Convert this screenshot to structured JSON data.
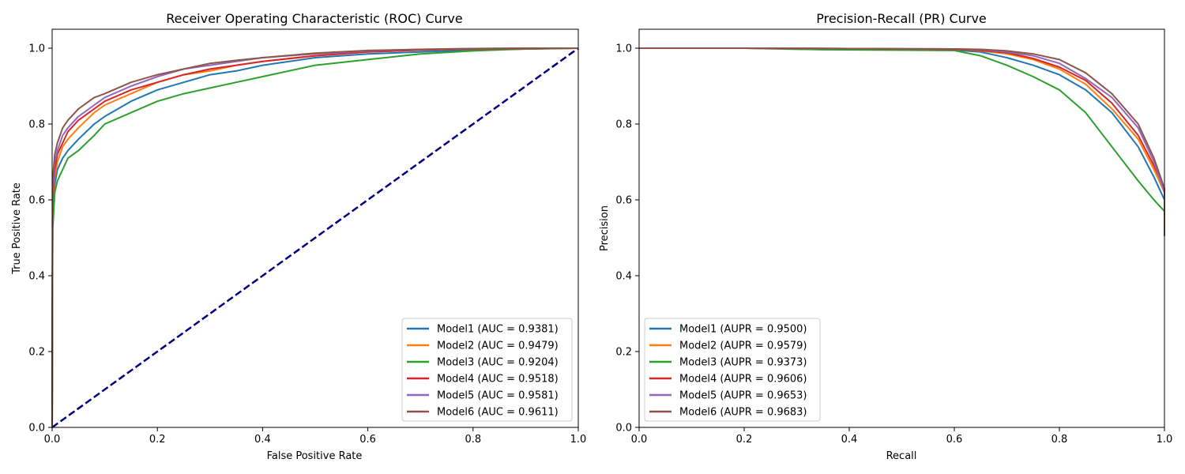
{
  "colors": {
    "Model1": "#1f77b4",
    "Model2": "#ff7f0e",
    "Model3": "#2ca02c",
    "Model4": "#d62728",
    "Model5": "#9467bd",
    "Model6": "#8c564b",
    "diagonal": "#000080"
  },
  "chart_data": [
    {
      "type": "line",
      "title": "Receiver Operating Characteristic (ROC) Curve",
      "xlabel": "False Positive Rate",
      "ylabel": "True Positive Rate",
      "xlim": [
        0,
        1
      ],
      "ylim": [
        0,
        1.05
      ],
      "xticks": [
        "0.0",
        "0.2",
        "0.4",
        "0.6",
        "0.8",
        "1.0"
      ],
      "yticks": [
        "0.0",
        "0.2",
        "0.4",
        "0.6",
        "0.8",
        "1.0"
      ],
      "legend_position": "lower-right",
      "grid": false,
      "diagonal_line": {
        "x": [
          0,
          1
        ],
        "y": [
          0,
          1
        ],
        "style": "dashed"
      },
      "series": [
        {
          "name": "Model1 (AUC = 0.9381)",
          "color_key": "Model1",
          "x": [
            0,
            0.001,
            0.005,
            0.01,
            0.02,
            0.03,
            0.05,
            0.08,
            0.1,
            0.15,
            0.2,
            0.25,
            0.3,
            0.35,
            0.4,
            0.5,
            0.6,
            0.7,
            0.8,
            0.9,
            1.0
          ],
          "y": [
            0,
            0.55,
            0.64,
            0.68,
            0.71,
            0.73,
            0.76,
            0.8,
            0.82,
            0.86,
            0.89,
            0.91,
            0.93,
            0.94,
            0.955,
            0.975,
            0.985,
            0.99,
            0.995,
            0.998,
            1.0
          ]
        },
        {
          "name": "Model2 (AUC = 0.9479)",
          "color_key": "Model2",
          "x": [
            0,
            0.001,
            0.005,
            0.01,
            0.02,
            0.03,
            0.05,
            0.08,
            0.1,
            0.15,
            0.2,
            0.25,
            0.3,
            0.35,
            0.4,
            0.5,
            0.6,
            0.7,
            0.8,
            0.9,
            1.0
          ],
          "y": [
            0,
            0.58,
            0.66,
            0.7,
            0.74,
            0.76,
            0.79,
            0.83,
            0.85,
            0.88,
            0.91,
            0.93,
            0.94,
            0.955,
            0.965,
            0.98,
            0.99,
            0.995,
            0.998,
            0.999,
            1.0
          ]
        },
        {
          "name": "Model3 (AUC = 0.9204)",
          "color_key": "Model3",
          "x": [
            0,
            0.001,
            0.005,
            0.01,
            0.02,
            0.03,
            0.05,
            0.08,
            0.1,
            0.15,
            0.2,
            0.25,
            0.3,
            0.35,
            0.4,
            0.5,
            0.6,
            0.7,
            0.8,
            0.9,
            1.0
          ],
          "y": [
            0,
            0.52,
            0.62,
            0.65,
            0.68,
            0.71,
            0.73,
            0.77,
            0.8,
            0.83,
            0.86,
            0.88,
            0.895,
            0.91,
            0.925,
            0.955,
            0.97,
            0.985,
            0.993,
            0.998,
            1.0
          ]
        },
        {
          "name": "Model4 (AUC = 0.9518)",
          "color_key": "Model4",
          "x": [
            0,
            0.001,
            0.005,
            0.01,
            0.02,
            0.03,
            0.05,
            0.08,
            0.1,
            0.15,
            0.2,
            0.25,
            0.3,
            0.35,
            0.4,
            0.5,
            0.6,
            0.7,
            0.8,
            0.9,
            1.0
          ],
          "y": [
            0,
            0.6,
            0.68,
            0.72,
            0.75,
            0.78,
            0.81,
            0.84,
            0.86,
            0.89,
            0.91,
            0.93,
            0.945,
            0.955,
            0.965,
            0.98,
            0.99,
            0.995,
            0.998,
            0.999,
            1.0
          ]
        },
        {
          "name": "Model5 (AUC = 0.9581)",
          "color_key": "Model5",
          "x": [
            0,
            0.001,
            0.005,
            0.01,
            0.02,
            0.03,
            0.05,
            0.08,
            0.1,
            0.15,
            0.2,
            0.25,
            0.3,
            0.35,
            0.4,
            0.5,
            0.6,
            0.7,
            0.8,
            0.9,
            1.0
          ],
          "y": [
            0,
            0.62,
            0.7,
            0.73,
            0.77,
            0.79,
            0.82,
            0.85,
            0.87,
            0.9,
            0.925,
            0.945,
            0.955,
            0.965,
            0.975,
            0.985,
            0.993,
            0.997,
            0.999,
            1.0,
            1.0
          ]
        },
        {
          "name": "Model6 (AUC = 0.9611)",
          "color_key": "Model6",
          "x": [
            0,
            0.001,
            0.005,
            0.01,
            0.02,
            0.03,
            0.05,
            0.08,
            0.1,
            0.15,
            0.2,
            0.25,
            0.3,
            0.35,
            0.4,
            0.5,
            0.6,
            0.7,
            0.8,
            0.9,
            1.0
          ],
          "y": [
            0,
            0.65,
            0.72,
            0.75,
            0.79,
            0.81,
            0.84,
            0.87,
            0.88,
            0.91,
            0.93,
            0.945,
            0.96,
            0.968,
            0.975,
            0.987,
            0.994,
            0.997,
            0.999,
            1.0,
            1.0
          ]
        }
      ]
    },
    {
      "type": "line",
      "title": "Precision-Recall (PR) Curve",
      "xlabel": "Recall",
      "ylabel": "Precision",
      "xlim": [
        0,
        1
      ],
      "ylim": [
        0,
        1.05
      ],
      "xticks": [
        "0.0",
        "0.2",
        "0.4",
        "0.6",
        "0.8",
        "1.0"
      ],
      "yticks": [
        "0.0",
        "0.2",
        "0.4",
        "0.6",
        "0.8",
        "1.0"
      ],
      "legend_position": "lower-left",
      "grid": false,
      "series": [
        {
          "name": "Model1 (AUPR = 0.9500)",
          "color_key": "Model1",
          "x": [
            0,
            0.2,
            0.4,
            0.6,
            0.65,
            0.7,
            0.75,
            0.8,
            0.85,
            0.9,
            0.95,
            0.98,
            1.0,
            1.0
          ],
          "y": [
            1.0,
            1.0,
            0.998,
            0.995,
            0.99,
            0.975,
            0.955,
            0.93,
            0.89,
            0.83,
            0.74,
            0.66,
            0.6,
            0.505
          ]
        },
        {
          "name": "Model2 (AUPR = 0.9579)",
          "color_key": "Model2",
          "x": [
            0,
            0.2,
            0.4,
            0.6,
            0.65,
            0.7,
            0.75,
            0.8,
            0.85,
            0.9,
            0.95,
            0.98,
            1.0,
            1.0
          ],
          "y": [
            1.0,
            1.0,
            0.999,
            0.997,
            0.993,
            0.985,
            0.97,
            0.945,
            0.905,
            0.84,
            0.76,
            0.68,
            0.62,
            0.505
          ]
        },
        {
          "name": "Model3 (AUPR = 0.9373)",
          "color_key": "Model3",
          "x": [
            0,
            0.2,
            0.35,
            0.6,
            0.65,
            0.7,
            0.75,
            0.8,
            0.85,
            0.9,
            0.95,
            0.98,
            1.0,
            1.0
          ],
          "y": [
            1.0,
            1.0,
            0.996,
            0.994,
            0.98,
            0.955,
            0.925,
            0.89,
            0.83,
            0.74,
            0.65,
            0.6,
            0.57,
            0.505
          ]
        },
        {
          "name": "Model4 (AUPR = 0.9606)",
          "color_key": "Model4",
          "x": [
            0,
            0.2,
            0.4,
            0.6,
            0.65,
            0.7,
            0.75,
            0.8,
            0.85,
            0.9,
            0.95,
            0.98,
            1.0,
            1.0
          ],
          "y": [
            1.0,
            1.0,
            0.999,
            0.997,
            0.994,
            0.988,
            0.973,
            0.95,
            0.915,
            0.855,
            0.77,
            0.69,
            0.63,
            0.505
          ]
        },
        {
          "name": "Model5 (AUPR = 0.9653)",
          "color_key": "Model5",
          "x": [
            0,
            0.2,
            0.4,
            0.6,
            0.65,
            0.7,
            0.75,
            0.8,
            0.85,
            0.9,
            0.95,
            0.98,
            1.0,
            1.0
          ],
          "y": [
            1.0,
            1.0,
            0.999,
            0.998,
            0.996,
            0.99,
            0.98,
            0.96,
            0.92,
            0.87,
            0.79,
            0.7,
            0.62,
            0.505
          ]
        },
        {
          "name": "Model6 (AUPR = 0.9683)",
          "color_key": "Model6",
          "x": [
            0,
            0.2,
            0.4,
            0.6,
            0.65,
            0.7,
            0.75,
            0.8,
            0.85,
            0.9,
            0.95,
            0.98,
            1.0,
            1.0
          ],
          "y": [
            1.0,
            1.0,
            0.999,
            0.998,
            0.997,
            0.993,
            0.985,
            0.97,
            0.935,
            0.88,
            0.8,
            0.71,
            0.63,
            0.505
          ]
        }
      ]
    }
  ]
}
